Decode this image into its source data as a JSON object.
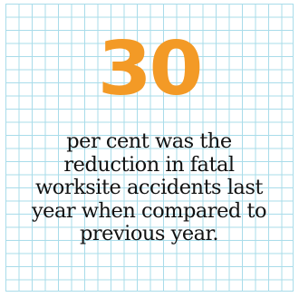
{
  "stat": {
    "value": "30",
    "caption_lines": [
      "per cent was the",
      "reduction in fatal",
      "worksite accidents last",
      "year when compared to",
      "previous year."
    ]
  },
  "colors": {
    "accent": "#f39a26",
    "grid": "#a9dcea",
    "text": "#111111",
    "background": "#ffffff"
  }
}
